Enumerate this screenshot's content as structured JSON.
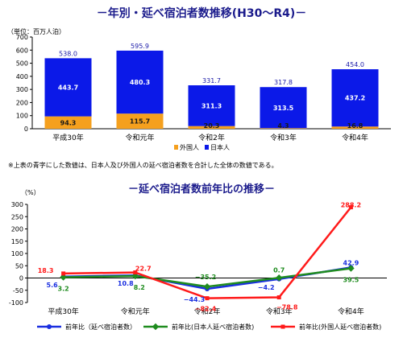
{
  "titles": {
    "bar_title": "－年別・延べ宿泊者数推移(H30～R4)－",
    "line_title": "－延べ宿泊者数前年比の推移－",
    "note": "※上表の青字にした数値は、日本人及び外国人の延べ宿泊者数を合計した全体の数値である。"
  },
  "colors": {
    "japanese": "#0b19e8",
    "foreign": "#f5a01e",
    "total_label": "#1a1aa8",
    "overall": "#1a2fe0",
    "japanese_line": "#1f8c1f",
    "foreign_line": "#ff1a1a",
    "title": "#1b1b8c"
  },
  "chart_data": [
    {
      "type": "bar",
      "stacked": true,
      "unit_label": "（単位：百万人泊）",
      "categories": [
        "平成30年",
        "令和元年",
        "令和2年",
        "令和3年",
        "令和4年"
      ],
      "series": [
        {
          "name": "外国人",
          "values": [
            94.3,
            115.7,
            20.3,
            4.3,
            16.8
          ]
        },
        {
          "name": "日本人",
          "values": [
            443.7,
            480.3,
            311.3,
            313.5,
            437.2
          ]
        }
      ],
      "totals": [
        538.0,
        595.9,
        331.7,
        317.8,
        454.0
      ],
      "total_labels": [
        "538.0",
        "595.9",
        "331.7",
        "317.8",
        "454.0"
      ],
      "foreign_labels": [
        "94.3",
        "115.7",
        "20.3",
        "4.3",
        "16.8"
      ],
      "japanese_labels": [
        "443.7",
        "480.3",
        "311.3",
        "313.5",
        "437.2"
      ],
      "ylim": [
        0,
        700
      ],
      "yticks": [
        "0",
        "100",
        "200",
        "300",
        "400",
        "500",
        "600",
        "700"
      ],
      "legend": "bottom",
      "grid": false
    },
    {
      "type": "line",
      "unit_label": "（%）",
      "categories": [
        "平成30年",
        "令和元年",
        "令和2年",
        "令和3年",
        "令和4年"
      ],
      "series": [
        {
          "name": "前年比（延べ宿泊者数）",
          "values": [
            5.6,
            10.8,
            -44.3,
            -4.2,
            42.9
          ],
          "labels": [
            "5.6",
            "10.8",
            "−44.3",
            "−4.2",
            "42.9"
          ]
        },
        {
          "name": "前年比(日本人延べ宿泊者数)",
          "values": [
            3.2,
            8.2,
            -35.2,
            0.7,
            39.5
          ],
          "labels": [
            "3.2",
            "8.2",
            "−35.2",
            "0.7",
            "39.5"
          ]
        },
        {
          "name": "前年比(外国人延べ宿泊者数)",
          "values": [
            18.3,
            22.7,
            -82.4,
            -78.8,
            288.2
          ],
          "labels": [
            "18.3",
            "22.7",
            "−82.4",
            "−78.8",
            "288.2"
          ]
        }
      ],
      "ylim": [
        -100,
        300
      ],
      "yticks": [
        "-100",
        "-50",
        "0",
        "50",
        "100",
        "150",
        "200",
        "250",
        "300"
      ],
      "legend": "bottom",
      "grid": false
    }
  ]
}
